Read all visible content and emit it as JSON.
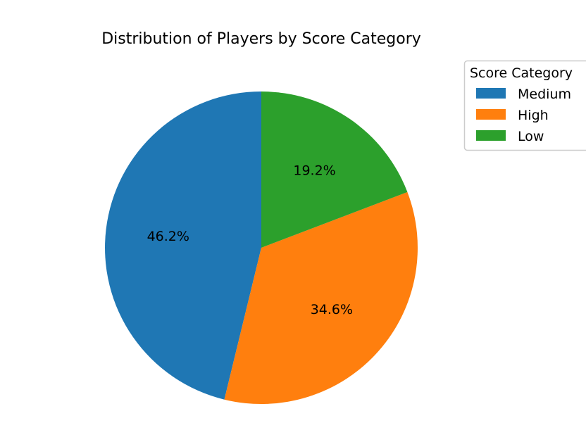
{
  "chart_data": {
    "type": "pie",
    "title": "Distribution of Players by Score Category",
    "categories": [
      "Medium",
      "High",
      "Low"
    ],
    "values": [
      46.2,
      34.6,
      19.2
    ],
    "value_labels": [
      "46.2%",
      "34.6%",
      "19.2%"
    ],
    "colors": [
      "#1f77b4",
      "#ff7f0e",
      "#2ca02c"
    ],
    "start_angle_deg": 90,
    "direction": "counterclockwise",
    "legend": {
      "title": "Score Category",
      "placement": "upper-right, outside the plot",
      "entries": [
        "Medium",
        "High",
        "Low"
      ]
    }
  }
}
